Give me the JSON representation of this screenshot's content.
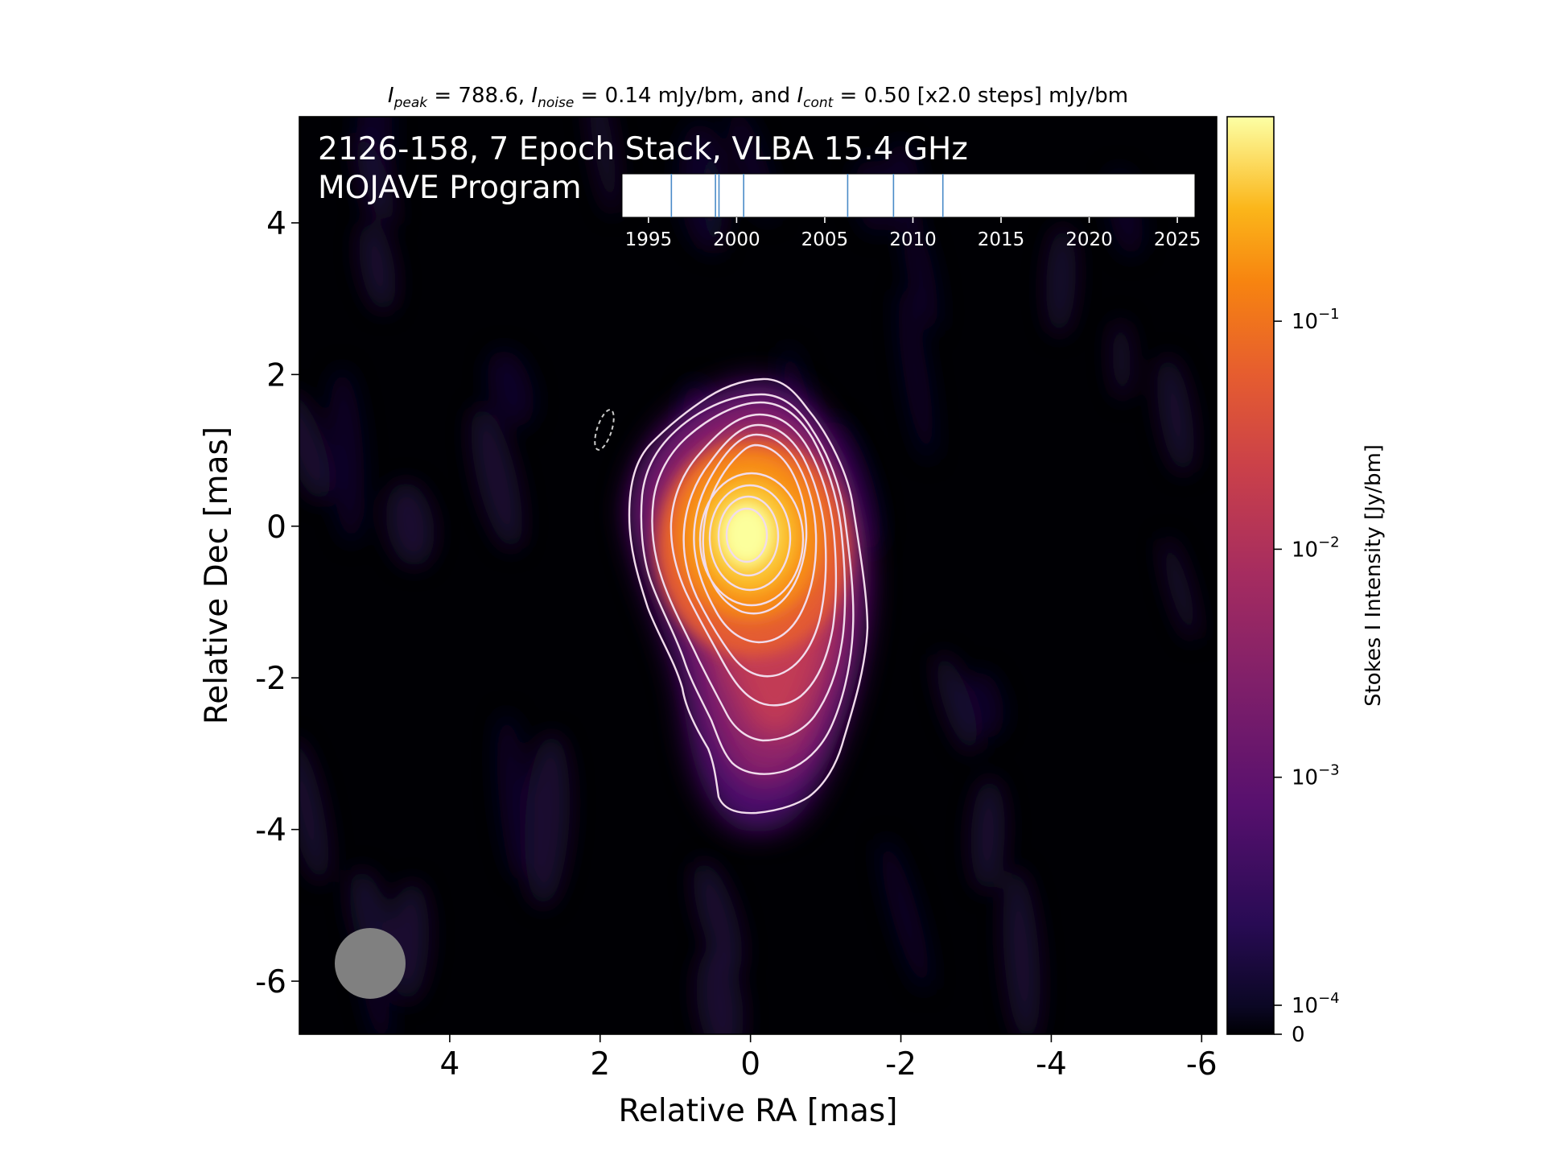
{
  "chart_data": {
    "type": "heatmap",
    "title_parts": {
      "peak_sym": "I",
      "peak_sub": "peak",
      "peak_rest": " = 788.6, ",
      "noise_sym": "I",
      "noise_sub": "noise",
      "noise_rest": " = 0.14 mJy/bm, and ",
      "cont_sym": "I",
      "cont_sub": "cont",
      "cont_rest": " = 0.50 [x2.0 steps] mJy/bm"
    },
    "annotation_line1": "2126-158, 7 Epoch Stack, VLBA 15.4 GHz",
    "annotation_line2": "MOJAVE Program",
    "xlabel": "Relative RA [mas]",
    "ylabel": "Relative Dec [mas]",
    "xlim": [
      6.0,
      -6.2
    ],
    "ylim": [
      -6.7,
      5.4
    ],
    "x_ticks": [
      4,
      2,
      0,
      -2,
      -4,
      -6
    ],
    "x_tick_labels": [
      "4",
      "2",
      "0",
      "-2",
      "-4",
      "-6"
    ],
    "y_ticks": [
      4,
      2,
      0,
      -2,
      -4,
      -6
    ],
    "y_tick_labels": [
      "4",
      "2",
      "0",
      "-2",
      "-4",
      "-6"
    ],
    "colormap": "inferno",
    "colorbar": {
      "label": "Stokes I Intensity [Jy/bm]",
      "scale": "log",
      "ticks": [
        {
          "base": "10",
          "exp": "−1",
          "value": 0.1
        },
        {
          "base": "10",
          "exp": "−2",
          "value": 0.01
        },
        {
          "base": "10",
          "exp": "−3",
          "value": 0.001
        },
        {
          "base": "10",
          "exp": "−4",
          "value": 0.0001
        }
      ],
      "zero_label": "0"
    },
    "peak_position_mas": [
      -0.05,
      -0.15
    ],
    "contour_levels_mJy_per_bm": [
      0.5,
      1,
      2,
      4,
      8,
      16,
      32,
      64,
      128,
      256,
      512
    ],
    "beam": {
      "major_mas": 0.95,
      "minor_mas": 0.95,
      "position": "bottom-left"
    },
    "epoch_timeline": {
      "year_range": [
        1993.5,
        2026.0
      ],
      "ticks": [
        1995,
        2000,
        2005,
        2010,
        2015,
        2020,
        2025
      ],
      "tick_labels": [
        "1995",
        "2000",
        "2005",
        "2010",
        "2015",
        "2020",
        "2025"
      ],
      "epochs": [
        1996.3,
        1998.8,
        1999.0,
        2000.4,
        2006.3,
        2008.9,
        2011.7
      ]
    },
    "colors": {
      "contour": "#f1dcec",
      "epoch_line": "#4a8bc8",
      "beam": "#808080",
      "background": "#000004"
    }
  }
}
